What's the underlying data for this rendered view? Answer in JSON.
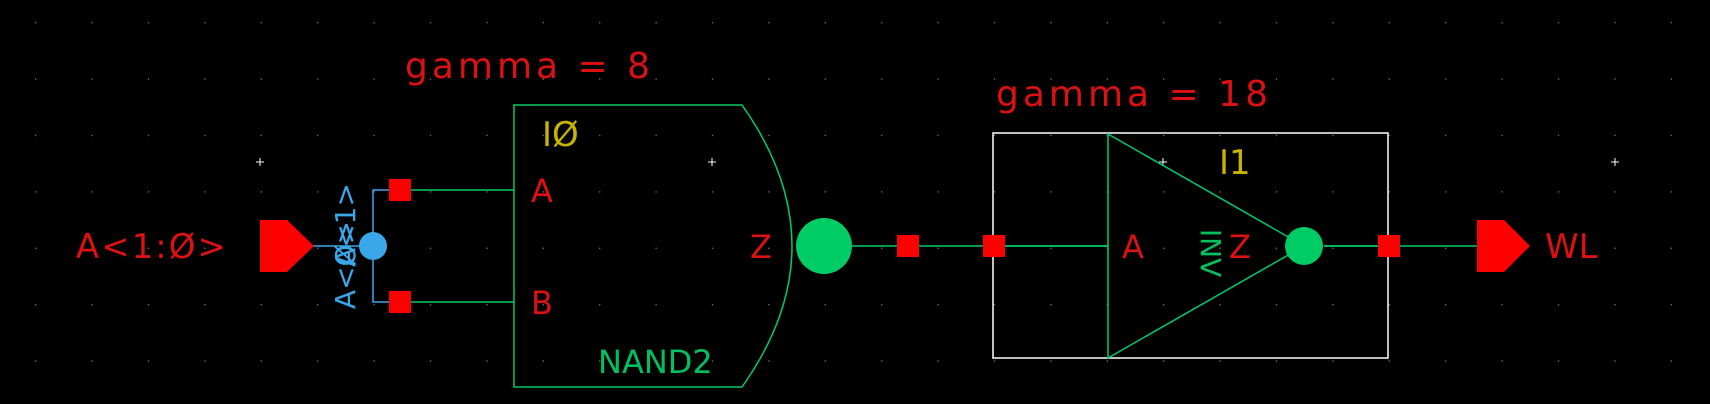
{
  "nand_gate": {
    "param_text": "gamma = 8",
    "instance_name": "IØ",
    "cell_name": "NAND2",
    "pin_a": "A",
    "pin_b": "B",
    "pin_z": "Z"
  },
  "inv_gate": {
    "param_text": "gamma = 18",
    "instance_name": "I1",
    "cell_name": "INV",
    "pin_a": "A",
    "pin_z": "Z"
  },
  "input_pin": {
    "label": "A<1:Ø>"
  },
  "output_pin": {
    "label": "WL"
  },
  "bus_ripper": {
    "top_label": "A<1>",
    "bottom_label": "A<Ø>"
  },
  "colors": {
    "background": "#000000",
    "wire": "#00cc66",
    "pin_red": "#ff0000",
    "label_red": "#dd1111",
    "instance_yellow": "#c8b400",
    "cell_green": "#00c060",
    "bus_blue": "#3aa8e8",
    "terminal_green": "#00cc66",
    "box_white": "#ffffff",
    "grid_dot": "#6a6a6a"
  }
}
